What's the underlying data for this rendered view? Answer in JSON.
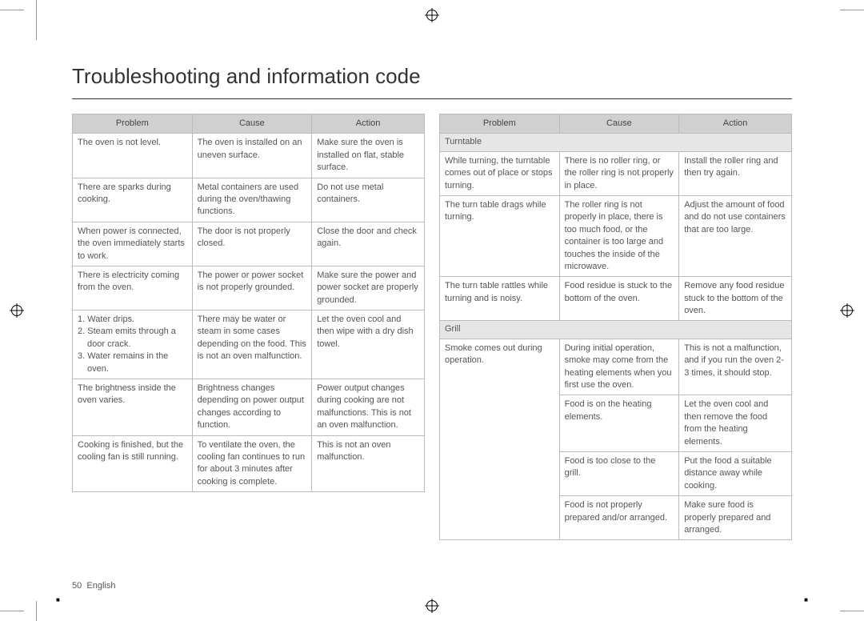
{
  "title": "Troubleshooting and information code",
  "footer": {
    "page": "50",
    "lang": "English"
  },
  "headers": {
    "problem": "Problem",
    "cause": "Cause",
    "action": "Action"
  },
  "left_rows": [
    {
      "problem": "The oven is not level.",
      "cause": "The oven is installed on an uneven surface.",
      "action": "Make sure the oven is installed on flat, stable surface."
    },
    {
      "problem": "There are sparks during cooking.",
      "cause": "Metal containers are used during the oven/thawing functions.",
      "action": "Do not use metal containers."
    },
    {
      "problem": "When power is connected, the oven immediately starts to work.",
      "cause": "The door is not properly closed.",
      "action": "Close the door and check again."
    },
    {
      "problem": "There is electricity coming from the oven.",
      "cause": "The power or power socket is not properly grounded.",
      "action": "Make sure the power and power socket are properly grounded."
    },
    {
      "problem_list": [
        "1. Water drips.",
        "2. Steam emits through a door crack.",
        "3. Water remains in the oven."
      ],
      "cause": "There may be water or steam in some cases depending on the food. This is not an oven malfunction.",
      "action": "Let the oven cool and then wipe with a dry dish towel."
    },
    {
      "problem": "The brightness inside the oven varies.",
      "cause": "Brightness changes depending on power output changes according to function.",
      "action": "Power output changes during cooking are not malfunctions. This is not an oven malfunction."
    },
    {
      "problem": "Cooking is finished, but the cooling fan is still running.",
      "cause": "To ventilate the oven, the cooling fan continues to run for about 3 minutes after cooking is complete.",
      "action": "This is not an oven malfunction."
    }
  ],
  "right_sections": [
    {
      "heading": "Turntable",
      "rows": [
        {
          "problem": "While turning, the turntable comes out of place or stops turning.",
          "cause": "There is no roller ring, or the roller ring is not properly in place.",
          "action": "Install the roller ring and then try again."
        },
        {
          "problem": "The turn table drags while turning.",
          "cause": "The roller ring is not properly in place, there is too much food, or the container is too large and touches the inside of the microwave.",
          "action": "Adjust the amount of food and do not use containers that are too large."
        },
        {
          "problem": "The turn table rattles while turning and is noisy.",
          "cause": "Food residue is stuck to the bottom of the oven.",
          "action": "Remove any food residue stuck to the bottom of the oven."
        }
      ]
    },
    {
      "heading": "Grill",
      "rows": [
        {
          "problem": "Smoke comes out during operation.",
          "rowspan": 4,
          "cause": "During initial operation, smoke may come from the heating elements when you first use the oven.",
          "action": "This is not a malfunction, and if you run the oven 2-3 times, it should stop."
        },
        {
          "cause": "Food is on the heating elements.",
          "action": "Let the oven cool and then remove the food from the heating elements."
        },
        {
          "cause": "Food is too close to the grill.",
          "action": "Put the food a suitable distance away while cooking."
        },
        {
          "cause": "Food is not properly prepared and/or arranged.",
          "action": "Make sure food is properly prepared and arranged."
        }
      ]
    }
  ]
}
